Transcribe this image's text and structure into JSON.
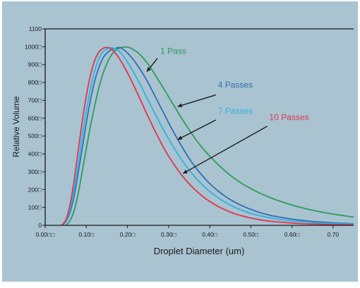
{
  "chart_data": {
    "type": "line",
    "title": "",
    "xlabel": "Droplet Diameter (um)",
    "ylabel": "Relative Volume",
    "xlim": [
      0.0,
      0.75
    ],
    "ylim": [
      0,
      1100
    ],
    "x_ticks": [
      {
        "value": 0.0,
        "label": "0.00□□"
      },
      {
        "value": 0.1,
        "label": "0.10□"
      },
      {
        "value": 0.2,
        "label": "0.20□"
      },
      {
        "value": 0.3,
        "label": "0.30□"
      },
      {
        "value": 0.4,
        "label": "0.40□"
      },
      {
        "value": 0.5,
        "label": "0.50□"
      },
      {
        "value": 0.6,
        "label": "0.60□"
      },
      {
        "value": 0.7,
        "label": "0.70"
      }
    ],
    "y_ticks": [
      {
        "value": 0,
        "label": "0"
      },
      {
        "value": 100,
        "label": "100□"
      },
      {
        "value": 200,
        "label": "200□"
      },
      {
        "value": 300,
        "label": "300□"
      },
      {
        "value": 400,
        "label": "400□"
      },
      {
        "value": 500,
        "label": "500□"
      },
      {
        "value": 600,
        "label": "600□"
      },
      {
        "value": 700,
        "label": "700□"
      },
      {
        "value": 800,
        "label": "800□"
      },
      {
        "value": 900,
        "label": "900□"
      },
      {
        "value": 1000,
        "label": "1000□"
      },
      {
        "value": 1100,
        "label": "1100"
      }
    ],
    "grid": false,
    "background_color": "#a9c3d1",
    "series": [
      {
        "name": "1 Pass",
        "color": "#2e9b5a",
        "label_at": [
          0.28,
          960
        ],
        "arrow": {
          "from": [
            0.273,
            935
          ],
          "to": [
            0.247,
            860
          ]
        },
        "x": [
          0.05,
          0.06,
          0.07,
          0.08,
          0.09,
          0.1,
          0.11,
          0.12,
          0.13,
          0.14,
          0.15,
          0.16,
          0.17,
          0.18,
          0.19,
          0.2,
          0.21,
          0.22,
          0.23,
          0.24,
          0.25,
          0.26,
          0.27,
          0.28,
          0.29,
          0.3,
          0.31,
          0.32,
          0.33,
          0.34,
          0.35,
          0.36,
          0.37,
          0.38,
          0.39,
          0.4,
          0.42,
          0.44,
          0.46,
          0.48,
          0.5,
          0.52,
          0.54,
          0.56,
          0.58,
          0.6,
          0.62,
          0.64,
          0.66,
          0.68,
          0.7,
          0.72,
          0.74,
          0.75
        ],
        "y": [
          0,
          25,
          80,
          175,
          300,
          430,
          555,
          665,
          765,
          845,
          905,
          950,
          978,
          992,
          998,
          998,
          990,
          976,
          957,
          932,
          903,
          870,
          833,
          796,
          758,
          720,
          682,
          644,
          606,
          570,
          535,
          501,
          469,
          440,
          413,
          387,
          341,
          299,
          263,
          232,
          206,
          182,
          162,
          144,
          128,
          114,
          101,
          90,
          80,
          71,
          63,
          56,
          49,
          46
        ]
      },
      {
        "name": "4 Passes",
        "color": "#2f6fb5",
        "label_at": [
          0.42,
          770
        ],
        "arrow": {
          "from": [
            0.415,
            730
          ],
          "to": [
            0.322,
            665
          ]
        },
        "x": [
          0.04,
          0.05,
          0.06,
          0.07,
          0.08,
          0.09,
          0.1,
          0.11,
          0.12,
          0.13,
          0.14,
          0.15,
          0.16,
          0.17,
          0.18,
          0.19,
          0.2,
          0.21,
          0.22,
          0.23,
          0.24,
          0.25,
          0.26,
          0.27,
          0.28,
          0.29,
          0.3,
          0.31,
          0.32,
          0.33,
          0.34,
          0.35,
          0.36,
          0.37,
          0.38,
          0.39,
          0.4,
          0.42,
          0.44,
          0.46,
          0.48,
          0.5,
          0.52,
          0.54,
          0.56,
          0.58,
          0.6,
          0.62,
          0.64,
          0.66,
          0.68,
          0.7,
          0.72,
          0.74,
          0.75
        ],
        "y": [
          0,
          20,
          70,
          160,
          290,
          430,
          575,
          700,
          805,
          880,
          935,
          965,
          982,
          990,
          996,
          985,
          965,
          940,
          910,
          877,
          840,
          800,
          755,
          710,
          665,
          620,
          575,
          532,
          490,
          450,
          412,
          375,
          342,
          312,
          284,
          258,
          234,
          193,
          159,
          131,
          108,
          89,
          73,
          60,
          50,
          42,
          35,
          29,
          24,
          20,
          17,
          14,
          12,
          10,
          9
        ]
      },
      {
        "name": "7 Passes",
        "color": "#2cb3e0",
        "label_at": [
          0.42,
          625
        ],
        "arrow": {
          "from": [
            0.415,
            590
          ],
          "to": [
            0.322,
            480
          ]
        },
        "x": [
          0.04,
          0.05,
          0.06,
          0.07,
          0.08,
          0.09,
          0.1,
          0.11,
          0.12,
          0.13,
          0.14,
          0.15,
          0.16,
          0.17,
          0.18,
          0.19,
          0.2,
          0.21,
          0.22,
          0.23,
          0.24,
          0.25,
          0.26,
          0.27,
          0.28,
          0.29,
          0.3,
          0.31,
          0.32,
          0.33,
          0.34,
          0.35,
          0.36,
          0.37,
          0.38,
          0.39,
          0.4,
          0.42,
          0.44,
          0.46,
          0.48,
          0.5,
          0.52,
          0.54,
          0.56,
          0.58,
          0.6,
          0.62,
          0.64,
          0.66,
          0.68,
          0.7,
          0.72,
          0.74,
          0.75
        ],
        "y": [
          0,
          25,
          85,
          195,
          340,
          500,
          640,
          765,
          862,
          930,
          970,
          988,
          995,
          990,
          975,
          948,
          915,
          877,
          836,
          793,
          748,
          702,
          657,
          612,
          568,
          525,
          484,
          445,
          408,
          373,
          340,
          310,
          282,
          256,
          232,
          210,
          190,
          155,
          126,
          102,
          83,
          67,
          55,
          45,
          37,
          30,
          25,
          21,
          17,
          14,
          12,
          10,
          8,
          7,
          6
        ]
      },
      {
        "name": "10 Passes",
        "color": "#e3324e",
        "label_at": [
          0.545,
          590
        ],
        "arrow": {
          "from": [
            0.54,
            555
          ],
          "to": [
            0.335,
            290
          ]
        },
        "x": [
          0.04,
          0.05,
          0.06,
          0.07,
          0.08,
          0.09,
          0.1,
          0.11,
          0.12,
          0.13,
          0.14,
          0.15,
          0.16,
          0.17,
          0.18,
          0.19,
          0.2,
          0.21,
          0.22,
          0.23,
          0.24,
          0.25,
          0.26,
          0.27,
          0.28,
          0.29,
          0.3,
          0.31,
          0.32,
          0.33,
          0.34,
          0.35,
          0.36,
          0.37,
          0.38,
          0.39,
          0.4,
          0.42,
          0.44,
          0.46,
          0.48,
          0.5,
          0.52,
          0.54,
          0.56,
          0.58,
          0.6,
          0.62,
          0.64,
          0.66,
          0.68,
          0.7,
          0.72,
          0.74,
          0.75
        ],
        "y": [
          0,
          30,
          110,
          245,
          415,
          580,
          725,
          840,
          920,
          968,
          990,
          996,
          988,
          966,
          935,
          897,
          855,
          808,
          760,
          710,
          660,
          610,
          562,
          515,
          470,
          427,
          388,
          352,
          318,
          287,
          259,
          233,
          209,
          188,
          168,
          150,
          134,
          106,
          84,
          66,
          52,
          41,
          32,
          25,
          20,
          16,
          13,
          10,
          8,
          7,
          5,
          4,
          3,
          3,
          2
        ]
      }
    ]
  }
}
